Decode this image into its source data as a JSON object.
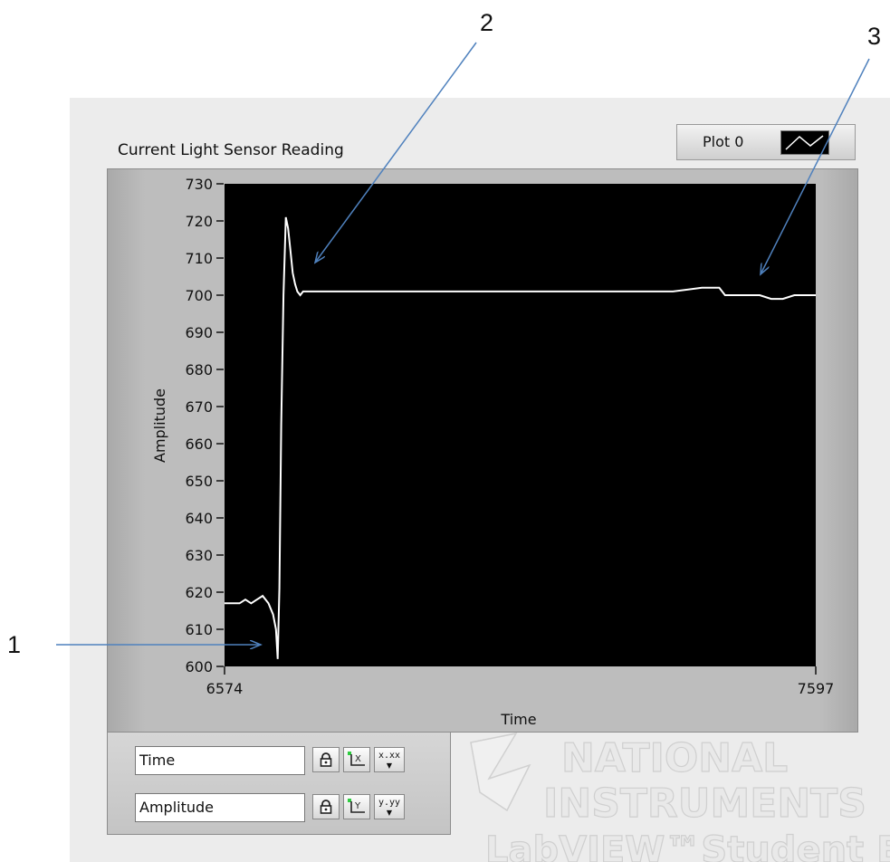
{
  "window": {
    "graph_title": "Current Light Sensor Reading",
    "legend": {
      "plot_name": "Plot 0"
    },
    "colors": {
      "plot_bg": "#000000",
      "trace": "#ffffff",
      "frame": "#bdbdbd",
      "panel": "#ececec",
      "annotation": "#4f81bd"
    }
  },
  "chart_data": {
    "type": "line",
    "xlabel": "Time",
    "ylabel": "Amplitude",
    "xlim": [
      6574,
      7597
    ],
    "ylim": [
      600,
      730
    ],
    "x_tick_labels": [
      "6574",
      "7597"
    ],
    "y_tick_labels": [
      "730",
      "720",
      "710",
      "700",
      "690",
      "680",
      "670",
      "660",
      "650",
      "640",
      "630",
      "620",
      "610",
      "600"
    ],
    "grid": false,
    "series": [
      {
        "x": [
          6574,
          6590,
          6600,
          6610,
          6620,
          6630,
          6640,
          6650,
          6658,
          6663,
          6666,
          6669,
          6672,
          6676,
          6680,
          6684,
          6688,
          6692,
          6696,
          6700,
          6705,
          6710,
          6715,
          6720,
          6730,
          6750,
          6800,
          6850,
          6900,
          6950,
          7000,
          7050,
          7100,
          7150,
          7200,
          7250,
          7300,
          7350,
          7400,
          7430,
          7440,
          7460,
          7480,
          7500,
          7520,
          7540,
          7560,
          7580,
          7597
        ],
        "y": [
          617,
          617,
          617,
          618,
          617,
          618,
          619,
          617,
          614,
          610,
          602,
          621,
          665,
          700,
          721,
          718,
          712,
          706,
          703,
          701,
          700,
          701,
          701,
          701,
          701,
          701,
          701,
          701,
          701,
          701,
          701,
          701,
          701,
          701,
          701,
          701,
          701,
          701,
          702,
          702,
          700,
          700,
          700,
          700,
          699,
          699,
          700,
          700,
          700
        ]
      }
    ]
  },
  "cursor_palette": {
    "x_axis_name": "Time",
    "y_axis_name": "Amplitude",
    "x_format_label": "x.xx",
    "y_format_label": "y.yy"
  },
  "watermark": {
    "line1": "NATIONAL",
    "line2": "INSTRUMENTS",
    "line3": "LabVIEW™Student Ed"
  },
  "annotations": [
    {
      "label": "1",
      "target_x": 6614,
      "target_y": 606
    },
    {
      "label": "2",
      "target_x": 6680,
      "target_y": 710
    },
    {
      "label": "3",
      "target_x": 7520,
      "target_y": 706
    }
  ]
}
